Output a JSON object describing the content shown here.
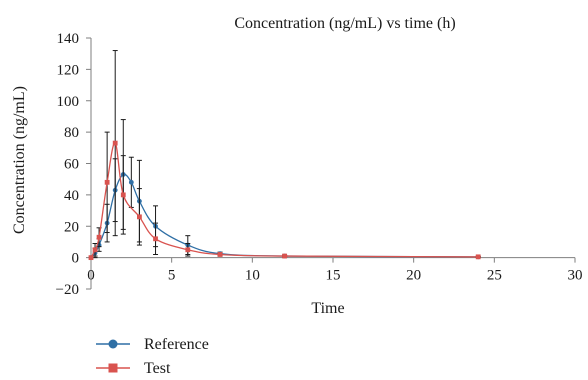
{
  "chart_data": {
    "type": "line",
    "title": "Concentration (ng/mL) vs time (h)",
    "xlabel": "Time",
    "ylabel": "Concentration (ng/mL)",
    "xlim": [
      0,
      30
    ],
    "ylim": [
      -20,
      140
    ],
    "xticks": [
      0,
      5,
      10,
      15,
      20,
      25,
      30
    ],
    "yticks": [
      -20,
      0,
      20,
      40,
      60,
      80,
      100,
      120,
      140
    ],
    "grid": false,
    "legend_position": "bottom-left",
    "series": [
      {
        "name": "Reference",
        "color": "#2f6fa5",
        "marker": "circle",
        "x": [
          0,
          0.25,
          0.5,
          1,
          1.5,
          2,
          2.5,
          3,
          4,
          6,
          8,
          12,
          24
        ],
        "y": [
          0,
          3,
          8,
          22,
          43,
          53,
          48,
          36,
          20,
          8,
          2.5,
          1,
          0.5
        ],
        "error": [
          0,
          3,
          4,
          12,
          20,
          35,
          16,
          26,
          13,
          6,
          1,
          0.5,
          0.3
        ]
      },
      {
        "name": "Test",
        "color": "#d9534f",
        "marker": "square",
        "x": [
          0,
          0.25,
          0.5,
          1,
          1.5,
          2,
          3,
          4,
          6,
          8,
          12,
          24
        ],
        "y": [
          0,
          5,
          13,
          48,
          73,
          40,
          26,
          12,
          5,
          2,
          1,
          0.5
        ],
        "error": [
          0,
          4,
          6,
          32,
          59,
          25,
          18,
          10,
          4,
          1,
          0.5,
          0.3
        ]
      }
    ]
  }
}
